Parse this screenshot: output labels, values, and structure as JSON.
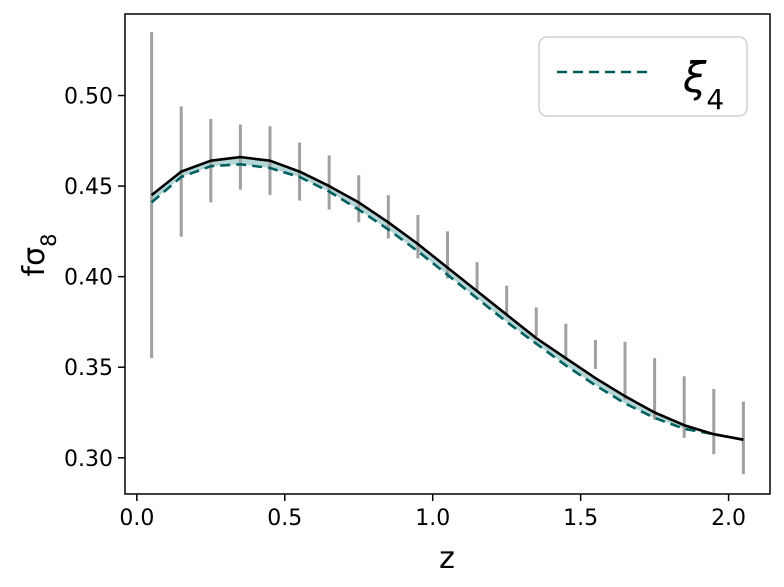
{
  "chart_data": {
    "type": "line",
    "xlabel": "z",
    "ylabel": "fσ8",
    "xlim": [
      -0.04,
      2.14
    ],
    "ylim": [
      0.28,
      0.545
    ],
    "xticks": [
      0.0,
      0.5,
      1.0,
      1.5,
      2.0
    ],
    "xtick_labels": [
      "0.0",
      "0.5",
      "1.0",
      "1.5",
      "2.0"
    ],
    "yticks": [
      0.3,
      0.35,
      0.4,
      0.45,
      0.5
    ],
    "ytick_labels": [
      "0.30",
      "0.35",
      "0.40",
      "0.45",
      "0.50"
    ],
    "grid": false,
    "legend_position": "top-right",
    "x": [
      0.05,
      0.15,
      0.25,
      0.35,
      0.45,
      0.55,
      0.65,
      0.75,
      0.85,
      0.95,
      1.05,
      1.15,
      1.25,
      1.35,
      1.45,
      1.55,
      1.65,
      1.75,
      1.85,
      1.95,
      2.05
    ],
    "series": [
      {
        "name": "ξ4",
        "style": "dashed",
        "color": "#005f5f",
        "values": [
          0.441,
          0.455,
          0.461,
          0.462,
          0.46,
          0.455,
          0.447,
          0.437,
          0.426,
          0.414,
          0.401,
          0.388,
          0.375,
          0.363,
          0.351,
          0.34,
          0.33,
          0.322,
          0.316,
          0.313,
          0.31
        ]
      },
      {
        "name": "",
        "style": "solid",
        "color": "#000000",
        "values": [
          0.445,
          0.458,
          0.464,
          0.466,
          0.464,
          0.458,
          0.45,
          0.441,
          0.43,
          0.418,
          0.405,
          0.392,
          0.379,
          0.366,
          0.355,
          0.344,
          0.334,
          0.325,
          0.318,
          0.313,
          0.31
        ]
      }
    ],
    "error_bars": {
      "color": "#a0a0a0",
      "x": [
        0.05,
        0.15,
        0.25,
        0.35,
        0.45,
        0.55,
        0.65,
        0.75,
        0.85,
        0.95,
        1.05,
        1.15,
        1.25,
        1.35,
        1.45,
        1.55,
        1.65,
        1.75,
        1.85,
        1.95,
        2.05
      ],
      "center": [
        0.445,
        0.458,
        0.464,
        0.466,
        0.464,
        0.458,
        0.452,
        0.443,
        0.433,
        0.422,
        0.412,
        0.4,
        0.387,
        0.375,
        0.364,
        0.357,
        0.348,
        0.338,
        0.328,
        0.32,
        0.311
      ],
      "half_height": [
        0.09,
        0.036,
        0.023,
        0.018,
        0.019,
        0.016,
        0.015,
        0.013,
        0.012,
        0.012,
        0.013,
        0.008,
        0.008,
        0.008,
        0.01,
        0.008,
        0.016,
        0.017,
        0.017,
        0.018,
        0.02
      ]
    },
    "fill_between_color": "#a8cfcf"
  }
}
